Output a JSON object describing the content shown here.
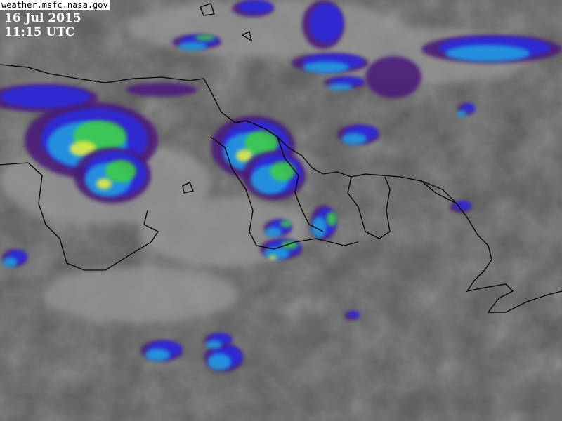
{
  "source_label": "weather.msfc.nasa.gov",
  "date": "16 Jul 2015",
  "time": "11:15 UTC",
  "imagery": {
    "type": "enhanced infrared satellite image",
    "background_color": "#5a5a5a",
    "enhancement_colors": [
      "#4a1a78",
      "#2a2ae0",
      "#20a0e0",
      "#40d040",
      "#e8f040"
    ],
    "border_color": "#000000"
  }
}
